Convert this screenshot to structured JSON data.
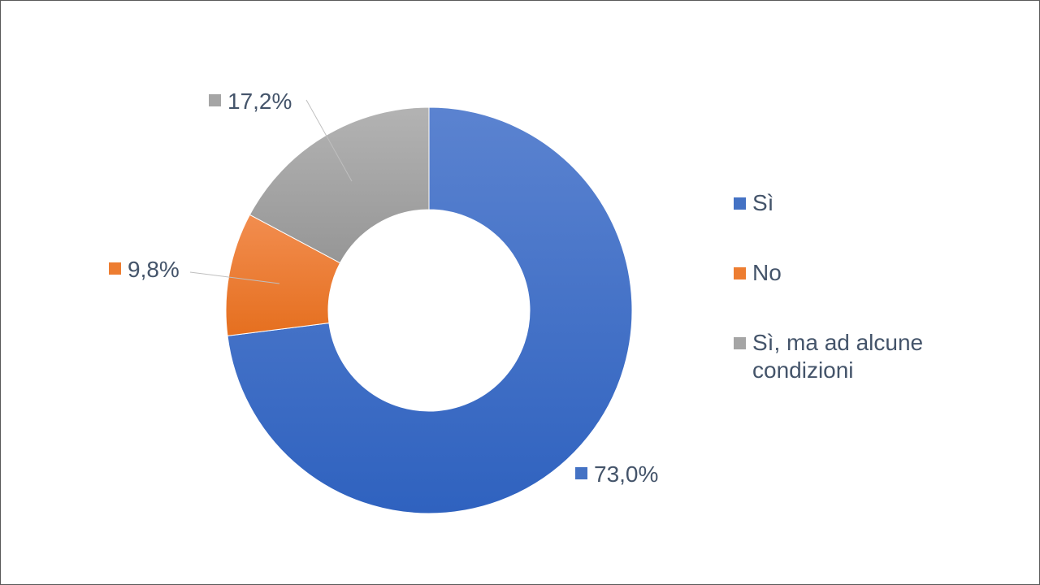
{
  "chart_data": {
    "type": "pie",
    "donut": true,
    "title": "",
    "legend_position": "right",
    "slices": [
      {
        "label": "Sì",
        "value": 73.0,
        "display": "73,0%",
        "color": "#4472c4"
      },
      {
        "label": "No",
        "value": 9.8,
        "display": "9,8%",
        "color": "#ed7d31"
      },
      {
        "label": "Sì, ma ad alcune condizioni",
        "value": 17.2,
        "display": "17,2%",
        "color": "#a5a5a5"
      }
    ]
  }
}
